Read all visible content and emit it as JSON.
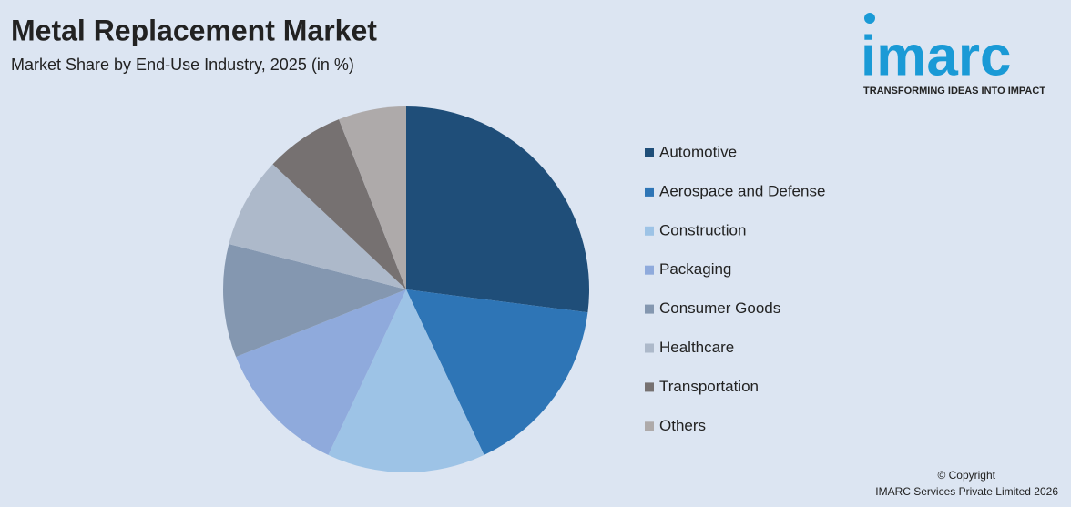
{
  "chart_data": {
    "type": "pie",
    "title": "Metal Replacement Market",
    "subtitle": "Market Share by End-Use Industry, 2025 (in %)",
    "categories": [
      "Automotive",
      "Aerospace and Defense",
      "Construction",
      "Packaging",
      "Consumer Goods",
      "Healthcare",
      "Transportation",
      "Others"
    ],
    "values": [
      27,
      16,
      14,
      12,
      10,
      8,
      7,
      6
    ],
    "colors": [
      "#1f4e79",
      "#2e75b6",
      "#9dc3e6",
      "#8faadc",
      "#8497b0",
      "#adb9ca",
      "#767171",
      "#aeaaaa"
    ],
    "legend": "right"
  },
  "logo": {
    "text": "imarc",
    "tagline": "TRANSFORMING IDEAS INTO IMPACT"
  },
  "copyright": [
    "© Copyright",
    "IMARC Services Private Limited 2026"
  ]
}
